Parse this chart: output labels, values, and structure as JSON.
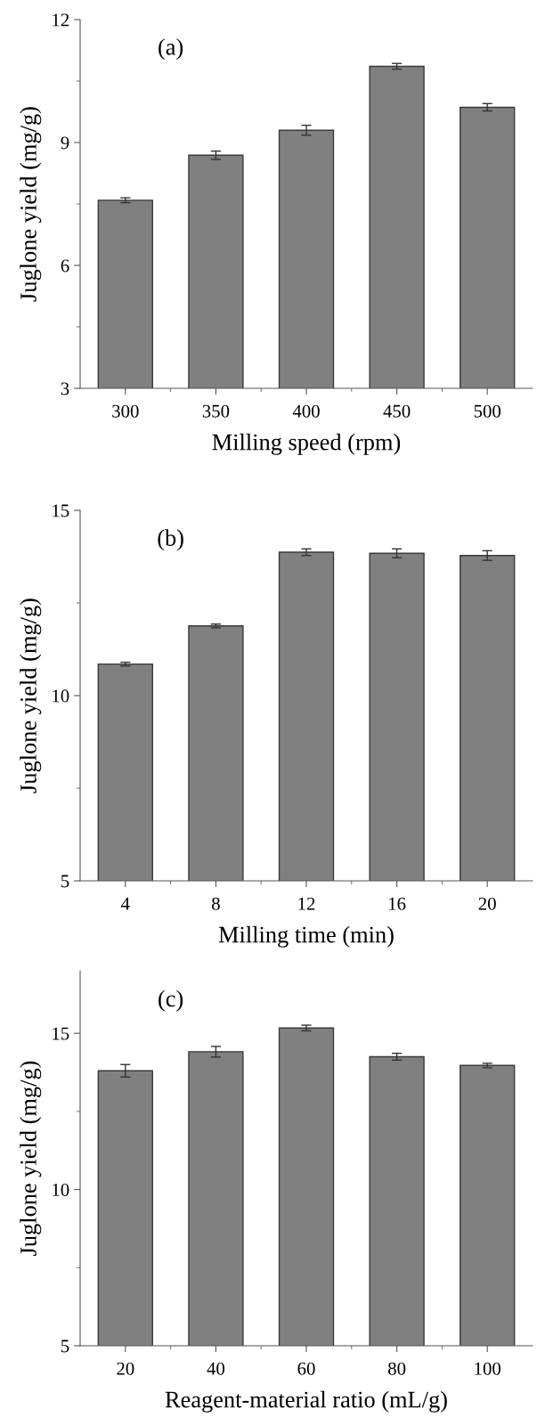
{
  "chart_data": [
    {
      "type": "bar",
      "xlabel": "Milling speed (rpm)",
      "ylabel": "Juglone yield (mg/g)",
      "annotations": [
        "(a)"
      ],
      "categories": [
        "300",
        "350",
        "400",
        "450",
        "500"
      ],
      "values": [
        7.59,
        8.69,
        9.3,
        10.86,
        9.86
      ],
      "errors": [
        0.06,
        0.1,
        0.12,
        0.07,
        0.09
      ],
      "color": "#808080",
      "ylim": [
        3,
        12
      ],
      "yticks": [
        3,
        6,
        9,
        12
      ],
      "grid": false,
      "legend": false
    },
    {
      "type": "bar",
      "xlabel": "Milling time (min)",
      "ylabel": "Juglone yield (mg/g)",
      "annotations": [
        "(b)"
      ],
      "categories": [
        "4",
        "8",
        "12",
        "16",
        "20"
      ],
      "values": [
        10.85,
        11.88,
        13.87,
        13.84,
        13.78
      ],
      "errors": [
        0.05,
        0.05,
        0.09,
        0.12,
        0.13
      ],
      "color": "#808080",
      "ylim": [
        5,
        15
      ],
      "yticks": [
        5,
        10,
        15
      ],
      "grid": false,
      "legend": false
    },
    {
      "type": "bar",
      "xlabel": "Reagent-material ratio (mL/g)",
      "ylabel": "Juglone yield (mg/g)",
      "annotations": [
        "(c)"
      ],
      "categories": [
        "20",
        "40",
        "60",
        "80",
        "100"
      ],
      "values": [
        13.8,
        14.41,
        15.17,
        14.25,
        13.97
      ],
      "errors": [
        0.2,
        0.17,
        0.09,
        0.11,
        0.07
      ],
      "color": "#808080",
      "ylim": [
        5,
        17
      ],
      "yticks": [
        5,
        10,
        15
      ],
      "grid": false,
      "legend": false
    }
  ]
}
